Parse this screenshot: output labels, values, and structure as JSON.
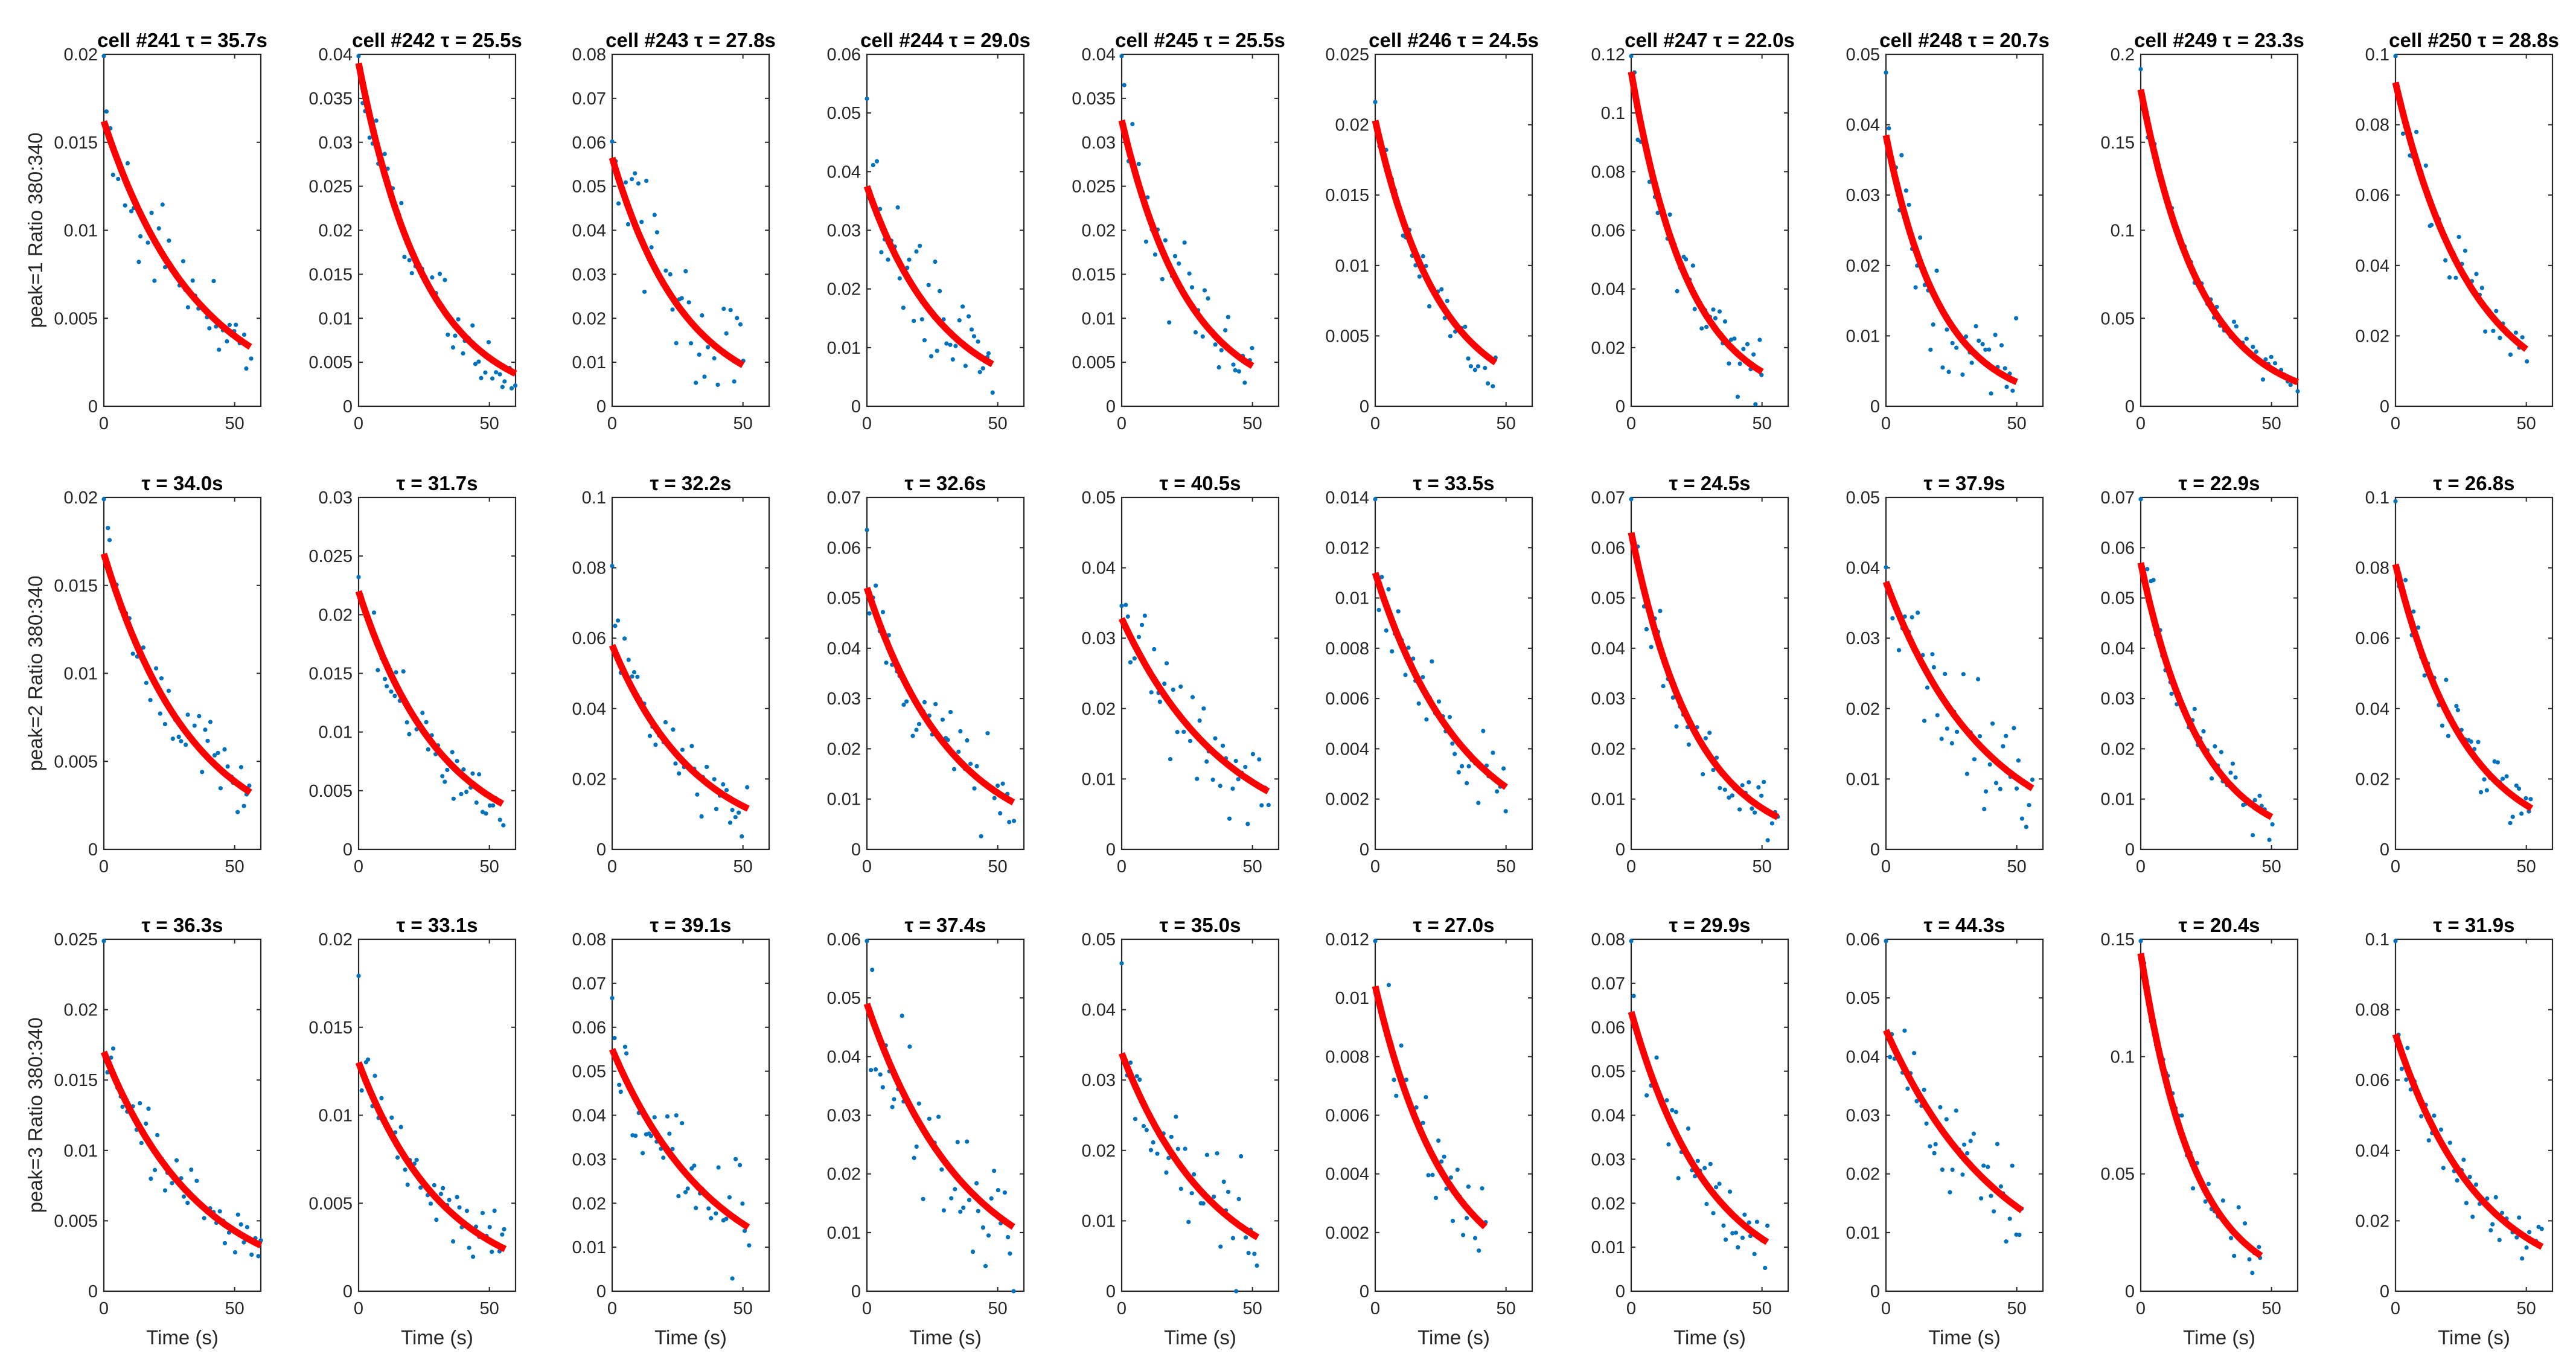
{
  "chart_data": {
    "type": "scatter",
    "layout": "3 rows x 10 columns",
    "fit": "exponential decay (red line)",
    "colors": {
      "points": "#0072BD",
      "fit": "#FF0000",
      "axes": "#262626"
    },
    "xlabel": "Time (s)",
    "row_ylabels": [
      "peak=1 Ratio 380:340",
      "peak=2 Ratio 380:340",
      "peak=3 Ratio 380:340"
    ],
    "column_labels": [
      "cell #241",
      "cell #242",
      "cell #243",
      "cell #244",
      "cell #245",
      "cell #246",
      "cell #247",
      "cell #248",
      "cell #249",
      "cell #250"
    ],
    "panels": [
      {
        "row": 0,
        "col": 0,
        "title": "cell #241 τ = 35.7s",
        "xlim": [
          0,
          60
        ],
        "ylim": [
          0,
          0.02
        ],
        "xticks": [
          "0",
          "50"
        ],
        "yticks": [
          "0",
          "0.005",
          "0.01",
          "0.015",
          "0.02"
        ],
        "fit": {
          "a": 0.0162,
          "tau": 35.7,
          "x_end": 56
        },
        "n_points": 44,
        "noise": 0.0017,
        "seed": 101
      },
      {
        "row": 0,
        "col": 1,
        "title": "cell #242 τ = 25.5s",
        "xlim": [
          0,
          60
        ],
        "ylim": [
          0,
          0.04
        ],
        "xticks": [
          "0",
          "50"
        ],
        "yticks": [
          "0",
          "0.005",
          "0.01",
          "0.015",
          "0.02",
          "0.025",
          "0.03",
          "0.035",
          "0.04"
        ],
        "fit": {
          "a": 0.039,
          "tau": 25.5,
          "x_end": 60
        },
        "n_points": 48,
        "noise": 0.0023,
        "seed": 102
      },
      {
        "row": 0,
        "col": 2,
        "title": "cell #243 τ = 27.8s",
        "xlim": [
          0,
          60
        ],
        "ylim": [
          0,
          0.08
        ],
        "xticks": [
          "0",
          "50"
        ],
        "yticks": [
          "0",
          "0.01",
          "0.02",
          "0.03",
          "0.04",
          "0.05",
          "0.06",
          "0.07",
          "0.08"
        ],
        "fit": {
          "a": 0.0565,
          "tau": 27.8,
          "x_end": 50
        },
        "n_points": 42,
        "noise": 0.009,
        "seed": 103
      },
      {
        "row": 0,
        "col": 3,
        "title": "cell #244 τ = 29.0s",
        "xlim": [
          0,
          60
        ],
        "ylim": [
          0,
          0.06
        ],
        "xticks": [
          "0",
          "50"
        ],
        "yticks": [
          "0",
          "0.01",
          "0.02",
          "0.03",
          "0.04",
          "0.05",
          "0.06"
        ],
        "fit": {
          "a": 0.0375,
          "tau": 29.0,
          "x_end": 48
        },
        "n_points": 42,
        "noise": 0.0075,
        "seed": 104
      },
      {
        "row": 0,
        "col": 4,
        "title": "cell #245 τ = 25.5s",
        "xlim": [
          0,
          60
        ],
        "ylim": [
          0,
          0.04
        ],
        "xticks": [
          "0",
          "50"
        ],
        "yticks": [
          "0",
          "0.005",
          "0.01",
          "0.015",
          "0.02",
          "0.025",
          "0.03",
          "0.035",
          "0.04"
        ],
        "fit": {
          "a": 0.0325,
          "tau": 25.5,
          "x_end": 50
        },
        "n_points": 40,
        "noise": 0.0045,
        "seed": 105
      },
      {
        "row": 0,
        "col": 5,
        "title": "cell #246 τ = 24.5s",
        "xlim": [
          0,
          60
        ],
        "ylim": [
          0,
          0.025
        ],
        "xticks": [
          "0",
          "50"
        ],
        "yticks": [
          "0",
          "0.005",
          "0.01",
          "0.015",
          "0.02",
          "0.025"
        ],
        "fit": {
          "a": 0.0203,
          "tau": 24.5,
          "x_end": 46
        },
        "n_points": 36,
        "noise": 0.0014,
        "seed": 106
      },
      {
        "row": 0,
        "col": 6,
        "title": "cell #247 τ = 22.0s",
        "xlim": [
          0,
          60
        ],
        "ylim": [
          0,
          0.12
        ],
        "xticks": [
          "0",
          "50"
        ],
        "yticks": [
          "0",
          "0.02",
          "0.04",
          "0.06",
          "0.08",
          "0.1",
          "0.12"
        ],
        "fit": {
          "a": 0.114,
          "tau": 22.0,
          "x_end": 50
        },
        "n_points": 44,
        "noise": 0.008,
        "seed": 107
      },
      {
        "row": 0,
        "col": 7,
        "title": "cell #248 τ = 20.7s",
        "xlim": [
          0,
          60
        ],
        "ylim": [
          0,
          0.05
        ],
        "xticks": [
          "0",
          "50"
        ],
        "yticks": [
          "0",
          "0.01",
          "0.02",
          "0.03",
          "0.04",
          "0.05"
        ],
        "fit": {
          "a": 0.0385,
          "tau": 20.7,
          "x_end": 50
        },
        "n_points": 42,
        "noise": 0.0052,
        "seed": 108
      },
      {
        "row": 0,
        "col": 8,
        "title": "cell #249 τ = 23.3s",
        "xlim": [
          0,
          60
        ],
        "ylim": [
          0,
          0.2
        ],
        "xticks": [
          "0",
          "50"
        ],
        "yticks": [
          "0",
          "0.05",
          "0.1",
          "0.15",
          "0.2"
        ],
        "fit": {
          "a": 0.18,
          "tau": 23.3,
          "x_end": 60
        },
        "n_points": 50,
        "noise": 0.007,
        "seed": 109
      },
      {
        "row": 0,
        "col": 9,
        "title": "cell #250 τ = 28.8s",
        "xlim": [
          0,
          60
        ],
        "ylim": [
          0,
          0.1
        ],
        "xticks": [
          "0",
          "50"
        ],
        "yticks": [
          "0",
          "0.02",
          "0.04",
          "0.06",
          "0.08",
          "0.1"
        ],
        "fit": {
          "a": 0.092,
          "tau": 28.8,
          "x_end": 50
        },
        "n_points": 40,
        "noise": 0.0065,
        "seed": 110
      },
      {
        "row": 1,
        "col": 0,
        "title": "τ = 34.0s",
        "xlim": [
          0,
          60
        ],
        "ylim": [
          0,
          0.02
        ],
        "xticks": [
          "0",
          "50"
        ],
        "yticks": [
          "0",
          "0.005",
          "0.01",
          "0.015",
          "0.02"
        ],
        "fit": {
          "a": 0.0168,
          "tau": 34.0,
          "x_end": 56
        },
        "n_points": 46,
        "noise": 0.0016,
        "seed": 201
      },
      {
        "row": 1,
        "col": 1,
        "title": "τ = 31.7s",
        "xlim": [
          0,
          60
        ],
        "ylim": [
          0,
          0.03
        ],
        "xticks": [
          "0",
          "50"
        ],
        "yticks": [
          "0",
          "0.005",
          "0.01",
          "0.015",
          "0.02",
          "0.025",
          "0.03"
        ],
        "fit": {
          "a": 0.022,
          "tau": 31.7,
          "x_end": 55
        },
        "n_points": 46,
        "noise": 0.0019,
        "seed": 202
      },
      {
        "row": 1,
        "col": 2,
        "title": "τ = 32.2s",
        "xlim": [
          0,
          60
        ],
        "ylim": [
          0,
          0.1
        ],
        "xticks": [
          "0",
          "50"
        ],
        "yticks": [
          "0",
          "0.02",
          "0.04",
          "0.06",
          "0.08",
          "0.1"
        ],
        "fit": {
          "a": 0.058,
          "tau": 32.2,
          "x_end": 52
        },
        "n_points": 44,
        "noise": 0.0075,
        "seed": 203
      },
      {
        "row": 1,
        "col": 3,
        "title": "τ = 32.6s",
        "xlim": [
          0,
          60
        ],
        "ylim": [
          0,
          0.07
        ],
        "xticks": [
          "0",
          "50"
        ],
        "yticks": [
          "0",
          "0.01",
          "0.02",
          "0.03",
          "0.04",
          "0.05",
          "0.06",
          "0.07"
        ],
        "fit": {
          "a": 0.052,
          "tau": 32.6,
          "x_end": 56
        },
        "n_points": 46,
        "noise": 0.0065,
        "seed": 204
      },
      {
        "row": 1,
        "col": 4,
        "title": "τ = 40.5s",
        "xlim": [
          0,
          60
        ],
        "ylim": [
          0,
          0.05
        ],
        "xticks": [
          "0",
          "50"
        ],
        "yticks": [
          "0",
          "0.01",
          "0.02",
          "0.03",
          "0.04",
          "0.05"
        ],
        "fit": {
          "a": 0.0328,
          "tau": 40.5,
          "x_end": 56
        },
        "n_points": 46,
        "noise": 0.0052,
        "seed": 205
      },
      {
        "row": 1,
        "col": 5,
        "title": "τ = 33.5s",
        "xlim": [
          0,
          60
        ],
        "ylim": [
          0,
          0.014
        ],
        "xticks": [
          "0",
          "50"
        ],
        "yticks": [
          "0",
          "0.002",
          "0.004",
          "0.006",
          "0.008",
          "0.01",
          "0.012",
          "0.014"
        ],
        "fit": {
          "a": 0.011,
          "tau": 33.5,
          "x_end": 50
        },
        "n_points": 40,
        "noise": 0.0011,
        "seed": 206
      },
      {
        "row": 1,
        "col": 6,
        "title": "τ = 24.5s",
        "xlim": [
          0,
          60
        ],
        "ylim": [
          0,
          0.07
        ],
        "xticks": [
          "0",
          "50"
        ],
        "yticks": [
          "0",
          "0.01",
          "0.02",
          "0.03",
          "0.04",
          "0.05",
          "0.06",
          "0.07"
        ],
        "fit": {
          "a": 0.063,
          "tau": 24.5,
          "x_end": 56
        },
        "n_points": 46,
        "noise": 0.0045,
        "seed": 207
      },
      {
        "row": 1,
        "col": 7,
        "title": "τ = 37.9s",
        "xlim": [
          0,
          60
        ],
        "ylim": [
          0,
          0.05
        ],
        "xticks": [
          "0",
          "50"
        ],
        "yticks": [
          "0",
          "0.01",
          "0.02",
          "0.03",
          "0.04",
          "0.05"
        ],
        "fit": {
          "a": 0.038,
          "tau": 37.9,
          "x_end": 56
        },
        "n_points": 46,
        "noise": 0.0058,
        "seed": 208
      },
      {
        "row": 1,
        "col": 8,
        "title": "τ = 22.9s",
        "xlim": [
          0,
          60
        ],
        "ylim": [
          0,
          0.07
        ],
        "xticks": [
          "0",
          "50"
        ],
        "yticks": [
          "0",
          "0.01",
          "0.02",
          "0.03",
          "0.04",
          "0.05",
          "0.06",
          "0.07"
        ],
        "fit": {
          "a": 0.057,
          "tau": 22.9,
          "x_end": 50
        },
        "n_points": 42,
        "noise": 0.0045,
        "seed": 209
      },
      {
        "row": 1,
        "col": 9,
        "title": "τ = 26.8s",
        "xlim": [
          0,
          60
        ],
        "ylim": [
          0,
          0.1
        ],
        "xticks": [
          "0",
          "50"
        ],
        "yticks": [
          "0",
          "0.02",
          "0.04",
          "0.06",
          "0.08",
          "0.1"
        ],
        "fit": {
          "a": 0.081,
          "tau": 26.8,
          "x_end": 52
        },
        "n_points": 44,
        "noise": 0.0065,
        "seed": 210
      },
      {
        "row": 2,
        "col": 0,
        "title": "τ = 36.3s",
        "xlim": [
          0,
          60
        ],
        "ylim": [
          0,
          0.025
        ],
        "xticks": [
          "0",
          "50"
        ],
        "yticks": [
          "0",
          "0.005",
          "0.01",
          "0.015",
          "0.02",
          "0.025"
        ],
        "fit": {
          "a": 0.017,
          "tau": 36.3,
          "x_end": 60
        },
        "n_points": 50,
        "noise": 0.0016,
        "seed": 301
      },
      {
        "row": 2,
        "col": 1,
        "title": "τ = 33.1s",
        "xlim": [
          0,
          60
        ],
        "ylim": [
          0,
          0.02
        ],
        "xticks": [
          "0",
          "50"
        ],
        "yticks": [
          "0",
          "0.005",
          "0.01",
          "0.015",
          "0.02"
        ],
        "fit": {
          "a": 0.013,
          "tau": 33.1,
          "x_end": 56
        },
        "n_points": 46,
        "noise": 0.0016,
        "seed": 302
      },
      {
        "row": 2,
        "col": 2,
        "title": "τ = 39.1s",
        "xlim": [
          0,
          60
        ],
        "ylim": [
          0,
          0.08
        ],
        "xticks": [
          "0",
          "50"
        ],
        "yticks": [
          "0",
          "0.01",
          "0.02",
          "0.03",
          "0.04",
          "0.05",
          "0.06",
          "0.07",
          "0.08"
        ],
        "fit": {
          "a": 0.055,
          "tau": 39.1,
          "x_end": 52
        },
        "n_points": 46,
        "noise": 0.0085,
        "seed": 303
      },
      {
        "row": 2,
        "col": 3,
        "title": "τ = 37.4s",
        "xlim": [
          0,
          60
        ],
        "ylim": [
          0,
          0.06
        ],
        "xticks": [
          "0",
          "50"
        ],
        "yticks": [
          "0",
          "0.01",
          "0.02",
          "0.03",
          "0.04",
          "0.05",
          "0.06"
        ],
        "fit": {
          "a": 0.049,
          "tau": 37.4,
          "x_end": 56
        },
        "n_points": 48,
        "noise": 0.0085,
        "seed": 304
      },
      {
        "row": 2,
        "col": 4,
        "title": "τ = 35.0s",
        "xlim": [
          0,
          60
        ],
        "ylim": [
          0,
          0.05
        ],
        "xticks": [
          "0",
          "50"
        ],
        "yticks": [
          "0",
          "0.01",
          "0.02",
          "0.03",
          "0.04",
          "0.05"
        ],
        "fit": {
          "a": 0.0338,
          "tau": 35.0,
          "x_end": 52
        },
        "n_points": 44,
        "noise": 0.0055,
        "seed": 305
      },
      {
        "row": 2,
        "col": 5,
        "title": "τ = 27.0s",
        "xlim": [
          0,
          60
        ],
        "ylim": [
          0,
          0.012
        ],
        "xticks": [
          "0",
          "50"
        ],
        "yticks": [
          "0",
          "0.002",
          "0.004",
          "0.006",
          "0.008",
          "0.01",
          "0.012"
        ],
        "fit": {
          "a": 0.0104,
          "tau": 27.0,
          "x_end": 42
        },
        "n_points": 36,
        "noise": 0.0011,
        "seed": 306
      },
      {
        "row": 2,
        "col": 6,
        "title": "τ = 29.9s",
        "xlim": [
          0,
          60
        ],
        "ylim": [
          0,
          0.08
        ],
        "xticks": [
          "0",
          "50"
        ],
        "yticks": [
          "0",
          "0.01",
          "0.02",
          "0.03",
          "0.04",
          "0.05",
          "0.06",
          "0.07",
          "0.08"
        ],
        "fit": {
          "a": 0.0635,
          "tau": 29.9,
          "x_end": 52
        },
        "n_points": 44,
        "noise": 0.0055,
        "seed": 307
      },
      {
        "row": 2,
        "col": 7,
        "title": "τ = 44.3s",
        "xlim": [
          0,
          60
        ],
        "ylim": [
          0,
          0.06
        ],
        "xticks": [
          "0",
          "50"
        ],
        "yticks": [
          "0",
          "0.01",
          "0.02",
          "0.03",
          "0.04",
          "0.05",
          "0.06"
        ],
        "fit": {
          "a": 0.0445,
          "tau": 44.3,
          "x_end": 52
        },
        "n_points": 44,
        "noise": 0.0058,
        "seed": 308
      },
      {
        "row": 2,
        "col": 8,
        "title": "τ = 20.4s",
        "xlim": [
          0,
          60
        ],
        "ylim": [
          0,
          0.15
        ],
        "xticks": [
          "0",
          "50"
        ],
        "yticks": [
          "0",
          "0.05",
          "0.1",
          "0.15"
        ],
        "fit": {
          "a": 0.144,
          "tau": 20.4,
          "x_end": 46
        },
        "n_points": 40,
        "noise": 0.0075,
        "seed": 309
      },
      {
        "row": 2,
        "col": 9,
        "title": "τ = 31.9s",
        "xlim": [
          0,
          60
        ],
        "ylim": [
          0,
          0.1
        ],
        "xticks": [
          "0",
          "50"
        ],
        "yticks": [
          "0",
          "0.02",
          "0.04",
          "0.06",
          "0.08",
          "0.1"
        ],
        "fit": {
          "a": 0.073,
          "tau": 31.9,
          "x_end": 56
        },
        "n_points": 46,
        "noise": 0.0058,
        "seed": 310
      }
    ]
  }
}
